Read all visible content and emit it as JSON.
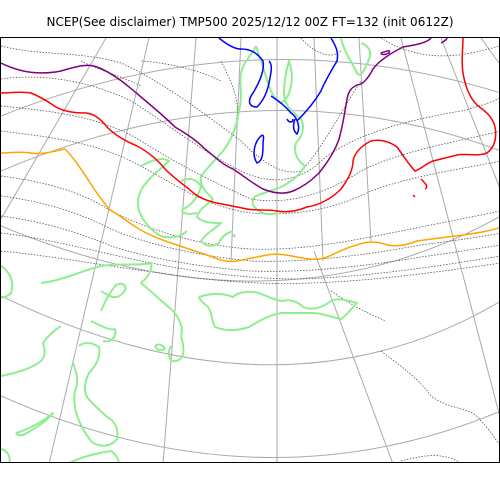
{
  "title": "NCEP(See disclaimer) TMP500 2025/12/12 00Z FT=132 (init 0612Z)",
  "map": {
    "projection": "polar stereographic",
    "graticule_color": "#aaaaaa",
    "coastline_color": "#90ee90",
    "dotted_isotherm_color": "#555555",
    "highlighted_isotherms": [
      {
        "name": "coldest",
        "color": "#0000ff"
      },
      {
        "name": "purple",
        "color": "#800080"
      },
      {
        "name": "red",
        "color": "#ff0000"
      },
      {
        "name": "orange",
        "color": "#ffa500"
      }
    ]
  }
}
